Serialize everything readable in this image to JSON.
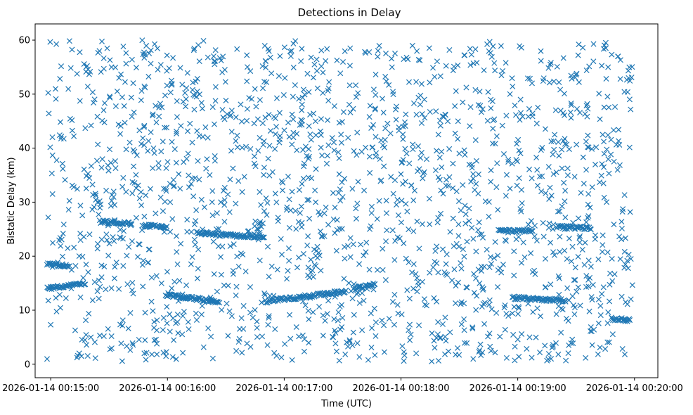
{
  "chart_data": {
    "type": "scatter",
    "title": "Detections in Delay",
    "xlabel": "Time (UTC)",
    "ylabel": "Bistatic Delay (km)",
    "x_ticks": [
      "2026-01-14 00:15:00",
      "2026-01-14 00:16:00",
      "2026-01-14 00:17:00",
      "2026-01-14 00:18:00",
      "2026-01-14 00:19:00",
      "2026-01-14 00:20:00"
    ],
    "y_ticks": [
      "0",
      "10",
      "20",
      "30",
      "40",
      "50",
      "60"
    ],
    "xlim": [
      "2026-01-14 00:14:52",
      "2026-01-14 00:20:12"
    ],
    "ylim": [
      -2.5,
      63
    ],
    "marker": "x",
    "color": "#1f77b4",
    "grid": false,
    "legend": "none",
    "tracks": [
      {
        "x": [
          "2026-01-14 00:14:58",
          "2026-01-14 00:15:18"
        ],
        "y": [
          14.0,
          15.0
        ]
      },
      {
        "x": [
          "2026-01-14 00:14:58",
          "2026-01-14 00:15:10"
        ],
        "y": [
          18.5,
          18.2
        ]
      },
      {
        "x": [
          "2026-01-14 00:15:25",
          "2026-01-14 00:15:42"
        ],
        "y": [
          26.4,
          26.0
        ]
      },
      {
        "x": [
          "2026-01-14 00:15:48",
          "2026-01-14 00:16:00"
        ],
        "y": [
          25.7,
          25.3
        ]
      },
      {
        "x": [
          "2026-01-14 00:15:59",
          "2026-01-14 00:16:27"
        ],
        "y": [
          12.9,
          11.5
        ]
      },
      {
        "x": [
          "2026-01-14 00:16:15",
          "2026-01-14 00:16:50"
        ],
        "y": [
          24.2,
          23.6
        ]
      },
      {
        "x": [
          "2026-01-14 00:16:50",
          "2026-01-14 00:17:32"
        ],
        "y": [
          11.6,
          13.5
        ]
      },
      {
        "x": [
          "2026-01-14 00:17:36",
          "2026-01-14 00:17:47"
        ],
        "y": [
          14.0,
          14.8
        ]
      },
      {
        "x": [
          "2026-01-14 00:18:50",
          "2026-01-14 00:19:08"
        ],
        "y": [
          24.6,
          24.8
        ]
      },
      {
        "x": [
          "2026-01-14 00:18:57",
          "2026-01-14 00:19:25"
        ],
        "y": [
          12.3,
          11.8
        ]
      },
      {
        "x": [
          "2026-01-14 00:19:20",
          "2026-01-14 00:19:38"
        ],
        "y": [
          25.4,
          25.2
        ]
      },
      {
        "x": [
          "2026-01-14 00:19:48",
          "2026-01-14 00:19:58"
        ],
        "y": [
          8.4,
          8.2
        ]
      }
    ],
    "noise": {
      "x_range": [
        "2026-01-14 00:14:58",
        "2026-01-14 00:19:59"
      ],
      "y_range": [
        0.5,
        60
      ]
    }
  }
}
